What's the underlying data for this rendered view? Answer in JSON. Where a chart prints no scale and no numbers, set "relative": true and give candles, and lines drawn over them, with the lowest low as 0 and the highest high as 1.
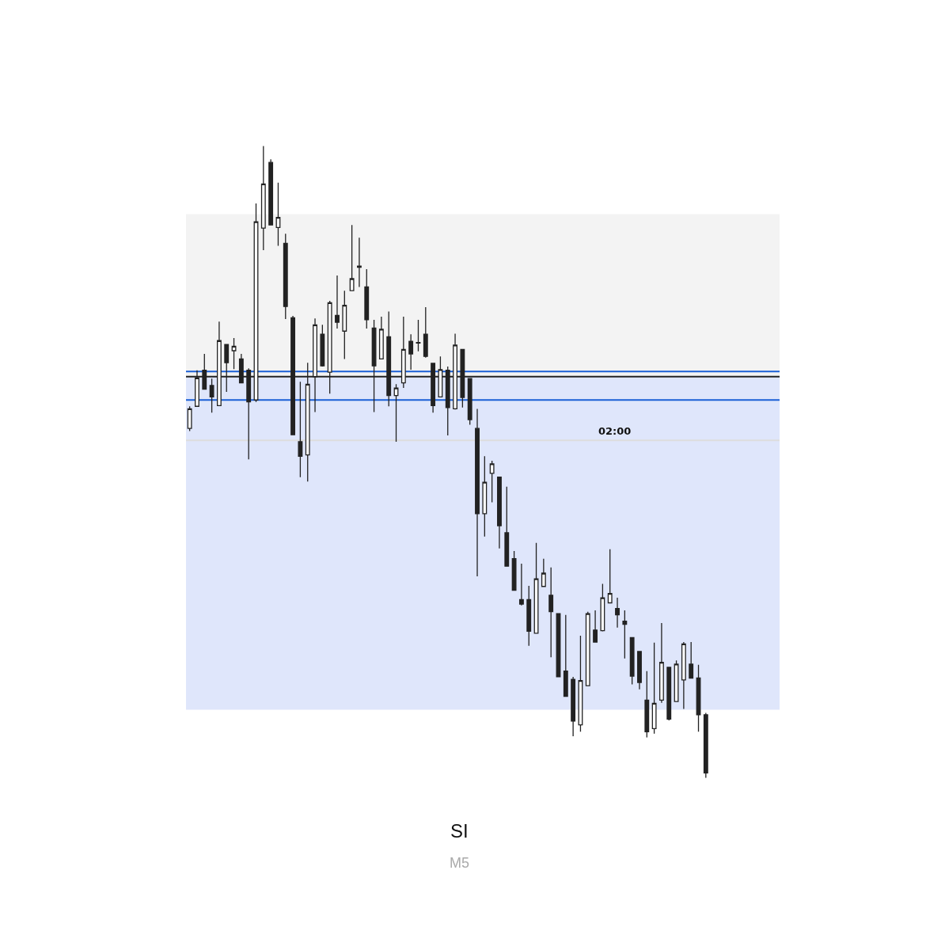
{
  "chart_data": {
    "type": "candlestick",
    "title": "SI",
    "subtitle": "M5",
    "relative": true,
    "categories": [
      null,
      null,
      null,
      null,
      null,
      null,
      null,
      null,
      null,
      null,
      null,
      null,
      null,
      null,
      null,
      null,
      null,
      null,
      null,
      null,
      null,
      null,
      null,
      null,
      null,
      null,
      null,
      null,
      null,
      null,
      null,
      null,
      null,
      null,
      null,
      null,
      null,
      null,
      null,
      null,
      null,
      null,
      null,
      null,
      null,
      null,
      null,
      null,
      null,
      null,
      null,
      null,
      null,
      null,
      null,
      null,
      null,
      null,
      null,
      null,
      null,
      null,
      null,
      null,
      null,
      null,
      null,
      null,
      null,
      null,
      null
    ],
    "ohlc": [
      [
        0.553,
        0.588,
        0.549,
        0.584
      ],
      [
        0.588,
        0.645,
        0.588,
        0.633
      ],
      [
        0.645,
        0.671,
        0.615,
        0.615
      ],
      [
        0.621,
        0.632,
        0.578,
        0.603
      ],
      [
        0.589,
        0.722,
        0.589,
        0.692
      ],
      [
        0.686,
        0.686,
        0.611,
        0.657
      ],
      [
        0.676,
        0.696,
        0.647,
        0.683
      ],
      [
        0.663,
        0.671,
        0.625,
        0.625
      ],
      [
        0.645,
        0.648,
        0.504,
        0.595
      ],
      [
        0.598,
        0.909,
        0.595,
        0.88
      ],
      [
        0.87,
        1,
        0.835,
        0.94
      ],
      [
        0.974,
        0.979,
        0.875,
        0.875
      ],
      [
        0.871,
        0.942,
        0.842,
        0.887
      ],
      [
        0.846,
        0.861,
        0.726,
        0.746
      ],
      [
        0.728,
        0.731,
        0.543,
        0.543
      ],
      [
        0.532,
        0.627,
        0.476,
        0.509
      ],
      [
        0.511,
        0.657,
        0.469,
        0.623
      ],
      [
        0.635,
        0.727,
        0.579,
        0.717
      ],
      [
        0.702,
        0.717,
        0.651,
        0.652
      ],
      [
        0.642,
        0.755,
        0.608,
        0.752
      ],
      [
        0.732,
        0.795,
        0.711,
        0.721
      ],
      [
        0.707,
        0.771,
        0.663,
        0.748
      ],
      [
        0.771,
        0.875,
        0.771,
        0.79
      ],
      [
        0.808,
        0.855,
        0.777,
        0.81
      ],
      [
        0.777,
        0.805,
        0.711,
        0.725
      ],
      [
        0.712,
        0.725,
        0.579,
        0.652
      ],
      [
        0.663,
        0.73,
        0.663,
        0.71
      ],
      [
        0.698,
        0.738,
        0.588,
        0.605
      ],
      [
        0.605,
        0.623,
        0.532,
        0.617
      ],
      [
        0.625,
        0.73,
        0.617,
        0.678
      ],
      [
        0.691,
        0.702,
        0.646,
        0.671
      ],
      [
        0.688,
        0.725,
        0.675,
        0.689
      ],
      [
        0.702,
        0.745,
        0.665,
        0.667
      ],
      [
        0.656,
        0.656,
        0.578,
        0.589
      ],
      [
        0.603,
        0.667,
        0.603,
        0.646
      ],
      [
        0.645,
        0.651,
        0.542,
        0.586
      ],
      [
        0.584,
        0.703,
        0.583,
        0.685
      ],
      [
        0.678,
        0.678,
        0.586,
        0.602
      ],
      [
        0.632,
        0.632,
        0.559,
        0.567
      ],
      [
        0.553,
        0.584,
        0.319,
        0.418
      ],
      [
        0.418,
        0.509,
        0.382,
        0.468
      ],
      [
        0.482,
        0.502,
        0.436,
        0.497
      ],
      [
        0.476,
        0.476,
        0.363,
        0.399
      ],
      [
        0.388,
        0.461,
        0.335,
        0.335
      ],
      [
        0.347,
        0.359,
        0.297,
        0.297
      ],
      [
        0.282,
        0.339,
        0.273,
        0.275
      ],
      [
        0.282,
        0.304,
        0.209,
        0.232
      ],
      [
        0.229,
        0.372,
        0.229,
        0.315
      ],
      [
        0.303,
        0.347,
        0.303,
        0.324
      ],
      [
        0.289,
        0.333,
        0.191,
        0.263
      ],
      [
        0.26,
        0.26,
        0.16,
        0.16
      ],
      [
        0.169,
        0.258,
        0.129,
        0.129
      ],
      [
        0.156,
        0.16,
        0.066,
        0.09
      ],
      [
        0.084,
        0.225,
        0.073,
        0.154
      ],
      [
        0.146,
        0.263,
        0.146,
        0.26
      ],
      [
        0.234,
        0.265,
        0.215,
        0.215
      ],
      [
        0.233,
        0.307,
        0.232,
        0.285
      ],
      [
        0.277,
        0.362,
        0.277,
        0.292
      ],
      [
        0.268,
        0.285,
        0.238,
        0.258
      ],
      [
        0.248,
        0.265,
        0.189,
        0.243
      ],
      [
        0.222,
        0.222,
        0.148,
        0.161
      ],
      [
        0.2,
        0.2,
        0.14,
        0.151
      ],
      [
        0.123,
        0.169,
        0.064,
        0.073
      ],
      [
        0.078,
        0.214,
        0.07,
        0.118
      ],
      [
        0.123,
        0.245,
        0.119,
        0.183
      ],
      [
        0.175,
        0.175,
        0.091,
        0.093
      ],
      [
        0.121,
        0.186,
        0.121,
        0.18
      ],
      [
        0.155,
        0.215,
        0.109,
        0.212
      ],
      [
        0.18,
        0.215,
        0.158,
        0.158
      ],
      [
        0.158,
        0.179,
        0.073,
        0.1
      ],
      [
        0.1,
        0.103,
        0,
        0.008
      ]
    ],
    "annotations": [
      {
        "text": "02:00",
        "y": 0.534
      }
    ],
    "ref_lines": [
      {
        "axis": "y",
        "value": 0.534,
        "color": "#dddddd"
      },
      {
        "axis": "y",
        "value": 0.598,
        "color": "#1a5fd6"
      },
      {
        "axis": "y",
        "value": 0.643,
        "color": "#1a5fd6"
      },
      {
        "axis": "y",
        "value": 0.635,
        "color": "#222222"
      }
    ],
    "bands": [
      {
        "axis": "y",
        "from": 0.635,
        "to": 0.892,
        "color": "#f3f3f3"
      },
      {
        "axis": "y",
        "from": 0.108,
        "to": 0.635,
        "color": "#dfe6fb"
      }
    ]
  }
}
